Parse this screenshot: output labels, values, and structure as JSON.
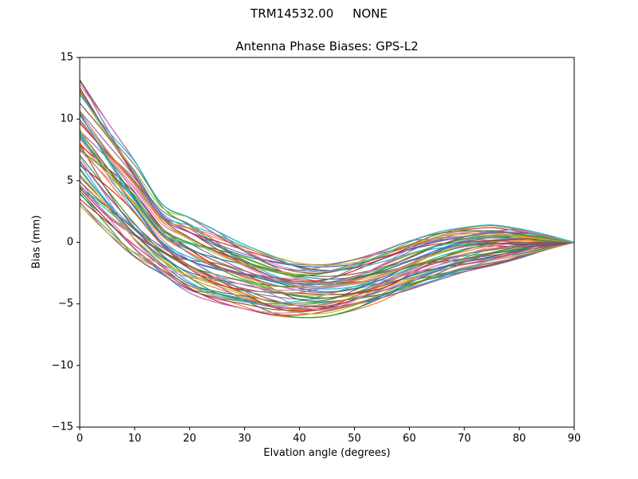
{
  "figure": {
    "suptitle": "TRM14532.00     NONE",
    "background": "#ffffff"
  },
  "chart_data": {
    "type": "line",
    "title": "Antenna Phase Biases: GPS-L2",
    "xlabel": "Elvation angle (degrees)",
    "ylabel": "Bias (mm)",
    "xlim": [
      0,
      90
    ],
    "ylim": [
      -15,
      15
    ],
    "xticks": [
      0,
      10,
      20,
      30,
      40,
      50,
      60,
      70,
      80,
      90
    ],
    "yticks": [
      -15,
      -10,
      -5,
      0,
      5,
      10,
      15
    ],
    "grid": false,
    "legend_position": "none",
    "x": [
      0,
      5,
      10,
      15,
      20,
      25,
      30,
      35,
      40,
      45,
      50,
      55,
      60,
      65,
      70,
      75,
      80,
      85,
      90
    ],
    "ensemble": {
      "count": 60,
      "upper": [
        13.2,
        9.8,
        6.6,
        3.1,
        2.0,
        0.9,
        -0.2,
        -1.1,
        -1.7,
        -1.8,
        -1.4,
        -0.7,
        0.1,
        0.8,
        1.2,
        1.4,
        1.1,
        0.6,
        0.0
      ],
      "lower": [
        3.0,
        0.8,
        -1.2,
        -2.6,
        -4.1,
        -4.9,
        -5.4,
        -5.9,
        -6.1,
        -6.0,
        -5.5,
        -4.8,
        -3.9,
        -3.1,
        -2.4,
        -1.9,
        -1.3,
        -0.6,
        0.0
      ],
      "converge_value_at_x_max": 0
    },
    "palette": [
      "#1f77b4",
      "#ff7f0e",
      "#2ca02c",
      "#d62728",
      "#9467bd",
      "#8c564b",
      "#e377c2",
      "#7f7f7f",
      "#bcbd22",
      "#17becf"
    ],
    "spine_color": "#000000",
    "line_width": 1.2
  }
}
